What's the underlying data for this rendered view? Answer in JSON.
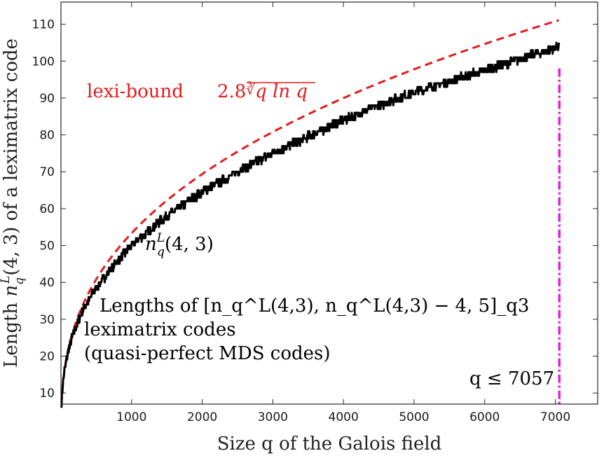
{
  "chart_data": {
    "type": "line",
    "title": "",
    "xlabel": "Size q of the Galois field",
    "ylabel": "Length n_q^L(4,3) of a leximatrix code",
    "xlim": [
      0,
      7600
    ],
    "ylim": [
      7,
      116
    ],
    "xticks": [
      1000,
      2000,
      3000,
      4000,
      5000,
      6000,
      7000
    ],
    "yticks": [
      10,
      20,
      30,
      40,
      50,
      60,
      70,
      80,
      90,
      100,
      110
    ],
    "grid": false,
    "series": [
      {
        "name": "lexi-bound 2.8 cbrt(q ln q)",
        "style": "dashed",
        "color": "#e41a1c",
        "formula": "2.8*cbrt(q*ln(q))",
        "x": [
          8,
          25,
          50,
          100,
          150,
          200,
          300,
          400,
          500,
          700,
          1000,
          1500,
          2000,
          2500,
          3000,
          3500,
          4000,
          4500,
          5000,
          5500,
          6000,
          6500,
          7057
        ],
        "y": [
          7.2,
          11.9,
          16.4,
          21.6,
          25.4,
          28.4,
          33.3,
          37.2,
          40.5,
          46.0,
          52.9,
          61.9,
          69.1,
          75.3,
          80.6,
          85.4,
          89.9,
          94.0,
          97.8,
          101.4,
          104.8,
          108.0,
          111.4
        ]
      },
      {
        "name": "n_q^L(4,3)",
        "style": "solid",
        "color": "#000000",
        "x": [
          8,
          25,
          50,
          100,
          150,
          200,
          300,
          400,
          500,
          700,
          1000,
          1500,
          2000,
          2500,
          3000,
          3500,
          4000,
          4500,
          5000,
          5500,
          6000,
          6500,
          7057
        ],
        "y": [
          7.5,
          12.0,
          16.0,
          21.0,
          24.5,
          27.5,
          32.0,
          35.5,
          38.5,
          43.5,
          50.0,
          58.0,
          64.5,
          70.0,
          75.0,
          79.5,
          84.0,
          88.0,
          91.5,
          94.5,
          97.5,
          100.5,
          104.0
        ]
      },
      {
        "name": "q <= 7057",
        "style": "dash-dot",
        "color": "#e020e0",
        "type": "vline",
        "x": 7057,
        "y_range": [
          7,
          98
        ]
      }
    ],
    "annotations": {
      "bound_label": "lexi-bound",
      "bound_formula_coef": "2.8",
      "bound_formula_root": "∛",
      "bound_formula_arg": "q ln q",
      "curve_label_n": "n",
      "curve_label_sup": "L",
      "curve_label_sub": "q",
      "curve_label_args": "(4, 3)",
      "lengths_line1": "Lengths of [n_q^L(4,3), n_q^L(4,3) − 4, 5]_q3",
      "lengths_line2": "leximatrix codes",
      "lengths_line3": "(quasi-perfect MDS codes)",
      "q_limit": "q ≤ 7057"
    }
  }
}
